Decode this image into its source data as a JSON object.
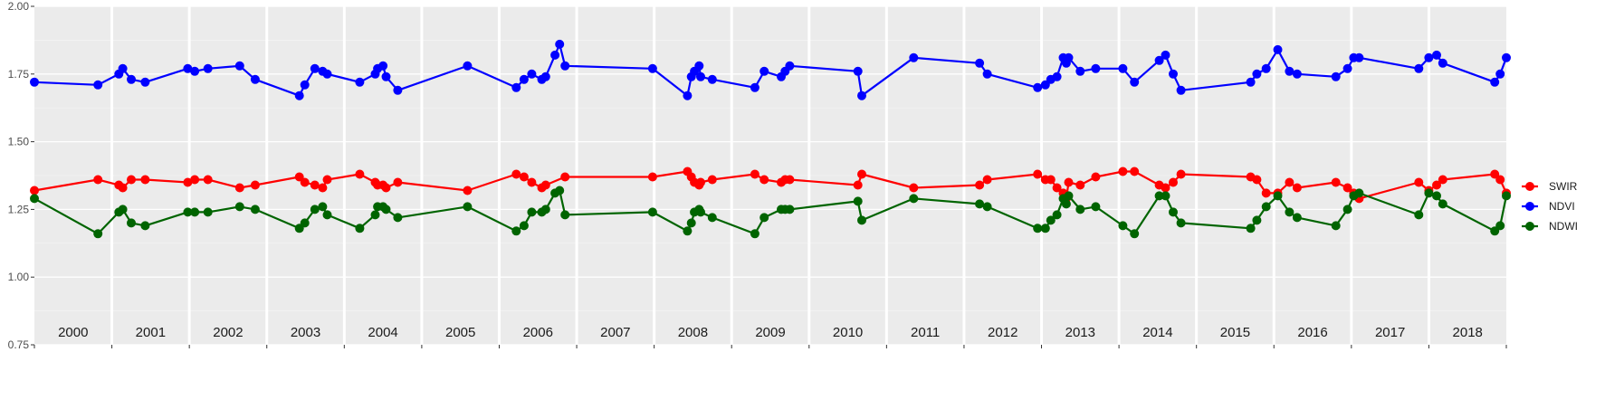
{
  "chart_data": {
    "type": "line",
    "title": "",
    "xlabel": "",
    "ylabel": "",
    "xlim": [
      2000.0,
      2019.0
    ],
    "ylim": [
      0.75,
      2.0
    ],
    "y_ticks": [
      "0.75",
      "1.00",
      "1.25",
      "1.50",
      "1.75",
      "2.00"
    ],
    "grid": true,
    "legend": "right",
    "years": [
      "2000",
      "2001",
      "2002",
      "2003",
      "2004",
      "2005",
      "2006",
      "2007",
      "2008",
      "2009",
      "2010",
      "2011",
      "2012",
      "2013",
      "2014",
      "2015",
      "2016",
      "2017",
      "2018"
    ],
    "series": [
      {
        "name": "SWIR",
        "color": "#ff0000",
        "points": [
          [
            2000.0,
            1.32
          ],
          [
            2000.82,
            1.36
          ],
          [
            2001.09,
            1.34
          ],
          [
            2001.14,
            1.33
          ],
          [
            2001.25,
            1.36
          ],
          [
            2001.43,
            1.36
          ],
          [
            2001.98,
            1.35
          ],
          [
            2002.07,
            1.36
          ],
          [
            2002.24,
            1.36
          ],
          [
            2002.65,
            1.33
          ],
          [
            2002.85,
            1.34
          ],
          [
            2003.42,
            1.37
          ],
          [
            2003.49,
            1.35
          ],
          [
            2003.62,
            1.34
          ],
          [
            2003.72,
            1.33
          ],
          [
            2003.78,
            1.36
          ],
          [
            2004.2,
            1.38
          ],
          [
            2004.4,
            1.35
          ],
          [
            2004.43,
            1.34
          ],
          [
            2004.5,
            1.34
          ],
          [
            2004.54,
            1.33
          ],
          [
            2004.69,
            1.35
          ],
          [
            2005.59,
            1.32
          ],
          [
            2006.22,
            1.38
          ],
          [
            2006.32,
            1.37
          ],
          [
            2006.42,
            1.35
          ],
          [
            2006.55,
            1.33
          ],
          [
            2006.6,
            1.34
          ],
          [
            2006.85,
            1.37
          ],
          [
            2007.98,
            1.37
          ],
          [
            2008.43,
            1.39
          ],
          [
            2008.48,
            1.37
          ],
          [
            2008.52,
            1.35
          ],
          [
            2008.58,
            1.34
          ],
          [
            2008.6,
            1.35
          ],
          [
            2008.75,
            1.36
          ],
          [
            2009.3,
            1.38
          ],
          [
            2009.42,
            1.36
          ],
          [
            2009.64,
            1.35
          ],
          [
            2009.69,
            1.36
          ],
          [
            2009.75,
            1.36
          ],
          [
            2010.63,
            1.34
          ],
          [
            2010.68,
            1.38
          ],
          [
            2011.35,
            1.33
          ],
          [
            2012.2,
            1.34
          ],
          [
            2012.3,
            1.36
          ],
          [
            2012.95,
            1.38
          ],
          [
            2013.05,
            1.36
          ],
          [
            2013.12,
            1.36
          ],
          [
            2013.2,
            1.33
          ],
          [
            2013.28,
            1.31
          ],
          [
            2013.32,
            1.29
          ],
          [
            2013.35,
            1.35
          ],
          [
            2013.5,
            1.34
          ],
          [
            2013.7,
            1.37
          ],
          [
            2014.05,
            1.39
          ],
          [
            2014.2,
            1.39
          ],
          [
            2014.52,
            1.34
          ],
          [
            2014.6,
            1.33
          ],
          [
            2014.7,
            1.35
          ],
          [
            2014.8,
            1.38
          ],
          [
            2015.7,
            1.37
          ],
          [
            2015.78,
            1.36
          ],
          [
            2015.9,
            1.31
          ],
          [
            2016.05,
            1.31
          ],
          [
            2016.2,
            1.35
          ],
          [
            2016.3,
            1.33
          ],
          [
            2016.8,
            1.35
          ],
          [
            2016.95,
            1.33
          ],
          [
            2017.03,
            1.31
          ],
          [
            2017.1,
            1.29
          ],
          [
            2017.87,
            1.35
          ],
          [
            2018.0,
            1.32
          ],
          [
            2018.1,
            1.34
          ],
          [
            2018.18,
            1.36
          ],
          [
            2018.85,
            1.38
          ],
          [
            2018.92,
            1.36
          ],
          [
            2019.0,
            1.31
          ]
        ]
      },
      {
        "name": "NDVI",
        "color": "#0000ff",
        "points": [
          [
            2000.0,
            1.72
          ],
          [
            2000.82,
            1.71
          ],
          [
            2001.09,
            1.75
          ],
          [
            2001.14,
            1.77
          ],
          [
            2001.25,
            1.73
          ],
          [
            2001.43,
            1.72
          ],
          [
            2001.98,
            1.77
          ],
          [
            2002.07,
            1.76
          ],
          [
            2002.24,
            1.77
          ],
          [
            2002.65,
            1.78
          ],
          [
            2002.85,
            1.73
          ],
          [
            2003.42,
            1.67
          ],
          [
            2003.49,
            1.71
          ],
          [
            2003.62,
            1.77
          ],
          [
            2003.72,
            1.76
          ],
          [
            2003.78,
            1.75
          ],
          [
            2004.2,
            1.72
          ],
          [
            2004.4,
            1.75
          ],
          [
            2004.43,
            1.77
          ],
          [
            2004.5,
            1.78
          ],
          [
            2004.54,
            1.74
          ],
          [
            2004.69,
            1.69
          ],
          [
            2005.59,
            1.78
          ],
          [
            2006.22,
            1.7
          ],
          [
            2006.32,
            1.73
          ],
          [
            2006.42,
            1.75
          ],
          [
            2006.55,
            1.73
          ],
          [
            2006.6,
            1.74
          ],
          [
            2006.72,
            1.82
          ],
          [
            2006.78,
            1.86
          ],
          [
            2006.85,
            1.78
          ],
          [
            2007.98,
            1.77
          ],
          [
            2008.43,
            1.67
          ],
          [
            2008.48,
            1.74
          ],
          [
            2008.52,
            1.76
          ],
          [
            2008.58,
            1.78
          ],
          [
            2008.6,
            1.74
          ],
          [
            2008.75,
            1.73
          ],
          [
            2009.3,
            1.7
          ],
          [
            2009.42,
            1.76
          ],
          [
            2009.64,
            1.74
          ],
          [
            2009.69,
            1.76
          ],
          [
            2009.75,
            1.78
          ],
          [
            2010.63,
            1.76
          ],
          [
            2010.68,
            1.67
          ],
          [
            2011.35,
            1.81
          ],
          [
            2012.2,
            1.79
          ],
          [
            2012.3,
            1.75
          ],
          [
            2012.95,
            1.7
          ],
          [
            2013.05,
            1.71
          ],
          [
            2013.12,
            1.73
          ],
          [
            2013.2,
            1.74
          ],
          [
            2013.28,
            1.81
          ],
          [
            2013.32,
            1.79
          ],
          [
            2013.35,
            1.81
          ],
          [
            2013.5,
            1.76
          ],
          [
            2013.7,
            1.77
          ],
          [
            2014.05,
            1.77
          ],
          [
            2014.2,
            1.72
          ],
          [
            2014.52,
            1.8
          ],
          [
            2014.6,
            1.82
          ],
          [
            2014.7,
            1.75
          ],
          [
            2014.8,
            1.69
          ],
          [
            2015.7,
            1.72
          ],
          [
            2015.78,
            1.75
          ],
          [
            2015.9,
            1.77
          ],
          [
            2016.05,
            1.84
          ],
          [
            2016.2,
            1.76
          ],
          [
            2016.3,
            1.75
          ],
          [
            2016.8,
            1.74
          ],
          [
            2016.95,
            1.77
          ],
          [
            2017.03,
            1.81
          ],
          [
            2017.1,
            1.81
          ],
          [
            2017.87,
            1.77
          ],
          [
            2018.0,
            1.81
          ],
          [
            2018.1,
            1.82
          ],
          [
            2018.18,
            1.79
          ],
          [
            2018.85,
            1.72
          ],
          [
            2018.92,
            1.75
          ],
          [
            2019.0,
            1.81
          ]
        ]
      },
      {
        "name": "NDWI",
        "color": "#006400",
        "points": [
          [
            2000.0,
            1.29
          ],
          [
            2000.82,
            1.16
          ],
          [
            2001.09,
            1.24
          ],
          [
            2001.14,
            1.25
          ],
          [
            2001.25,
            1.2
          ],
          [
            2001.43,
            1.19
          ],
          [
            2001.98,
            1.24
          ],
          [
            2002.07,
            1.24
          ],
          [
            2002.24,
            1.24
          ],
          [
            2002.65,
            1.26
          ],
          [
            2002.85,
            1.25
          ],
          [
            2003.42,
            1.18
          ],
          [
            2003.49,
            1.2
          ],
          [
            2003.62,
            1.25
          ],
          [
            2003.72,
            1.26
          ],
          [
            2003.78,
            1.23
          ],
          [
            2004.2,
            1.18
          ],
          [
            2004.4,
            1.23
          ],
          [
            2004.43,
            1.26
          ],
          [
            2004.5,
            1.26
          ],
          [
            2004.54,
            1.25
          ],
          [
            2004.69,
            1.22
          ],
          [
            2005.59,
            1.26
          ],
          [
            2006.22,
            1.17
          ],
          [
            2006.32,
            1.19
          ],
          [
            2006.42,
            1.24
          ],
          [
            2006.55,
            1.24
          ],
          [
            2006.6,
            1.25
          ],
          [
            2006.72,
            1.31
          ],
          [
            2006.78,
            1.32
          ],
          [
            2006.85,
            1.23
          ],
          [
            2007.98,
            1.24
          ],
          [
            2008.43,
            1.17
          ],
          [
            2008.48,
            1.2
          ],
          [
            2008.52,
            1.24
          ],
          [
            2008.58,
            1.25
          ],
          [
            2008.6,
            1.24
          ],
          [
            2008.75,
            1.22
          ],
          [
            2009.3,
            1.16
          ],
          [
            2009.42,
            1.22
          ],
          [
            2009.64,
            1.25
          ],
          [
            2009.69,
            1.25
          ],
          [
            2009.75,
            1.25
          ],
          [
            2010.63,
            1.28
          ],
          [
            2010.68,
            1.21
          ],
          [
            2011.35,
            1.29
          ],
          [
            2012.2,
            1.27
          ],
          [
            2012.3,
            1.26
          ],
          [
            2012.95,
            1.18
          ],
          [
            2013.05,
            1.18
          ],
          [
            2013.12,
            1.21
          ],
          [
            2013.2,
            1.23
          ],
          [
            2013.28,
            1.29
          ],
          [
            2013.32,
            1.27
          ],
          [
            2013.35,
            1.3
          ],
          [
            2013.5,
            1.25
          ],
          [
            2013.7,
            1.26
          ],
          [
            2014.05,
            1.19
          ],
          [
            2014.2,
            1.16
          ],
          [
            2014.52,
            1.3
          ],
          [
            2014.6,
            1.3
          ],
          [
            2014.7,
            1.24
          ],
          [
            2014.8,
            1.2
          ],
          [
            2015.7,
            1.18
          ],
          [
            2015.78,
            1.21
          ],
          [
            2015.9,
            1.26
          ],
          [
            2016.05,
            1.3
          ],
          [
            2016.2,
            1.24
          ],
          [
            2016.3,
            1.22
          ],
          [
            2016.8,
            1.19
          ],
          [
            2016.95,
            1.25
          ],
          [
            2017.03,
            1.3
          ],
          [
            2017.1,
            1.31
          ],
          [
            2017.87,
            1.23
          ],
          [
            2018.0,
            1.31
          ],
          [
            2018.1,
            1.3
          ],
          [
            2018.18,
            1.27
          ],
          [
            2018.85,
            1.17
          ],
          [
            2018.92,
            1.19
          ],
          [
            2019.0,
            1.3
          ]
        ]
      }
    ]
  }
}
